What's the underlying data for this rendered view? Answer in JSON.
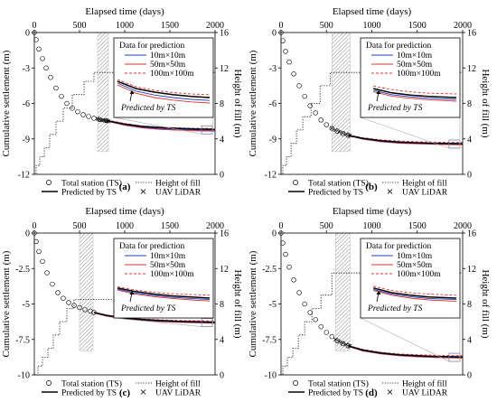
{
  "figure": {
    "top_axis_title": "Elapsed time (days)",
    "left_axis_title": "Cumulative settlement (m)",
    "right_axis_title": "Height of fill (m)",
    "inset_title": "Data for prediction",
    "predicted_annotation": "Predicted by TS",
    "panel_labels": [
      "(a)",
      "(b)",
      "(c)",
      "(d)"
    ],
    "legend": [
      {
        "label": "Total station (TS)",
        "symbol": "circle"
      },
      {
        "label": "Height of fill",
        "symbol": "dotted"
      },
      {
        "label": "Predicted by TS",
        "symbol": "thick-line"
      },
      {
        "label": "UAV LiDAR",
        "symbol": "cross"
      }
    ],
    "inset_legend": [
      {
        "label": "10m×10m",
        "color": "#1f3fbf",
        "dash": "solid"
      },
      {
        "label": "50m×50m",
        "color": "#e03030",
        "dash": "solid"
      },
      {
        "label": "100m×100m",
        "color": "#e03030",
        "dash": "dashed"
      }
    ],
    "colors": {
      "measured": "#000000",
      "blue": "#1f3fbf",
      "red": "#e03030",
      "band": "#bbbbbb",
      "inset_box": "#7f7f9f"
    }
  },
  "chart_data": [
    {
      "type": "line",
      "panel": "(a)",
      "xlim": [
        0,
        2000
      ],
      "xticks": [
        0,
        500,
        1000,
        1500,
        2000
      ],
      "ylim": [
        -12,
        0
      ],
      "yticks": [
        0,
        -3,
        -6,
        -9,
        -12
      ],
      "y2lim": [
        0,
        16
      ],
      "y2ticks": [
        16,
        12,
        8,
        4,
        0
      ],
      "uav_window": [
        700,
        820
      ],
      "settlement_total_station": [
        [
          0,
          0
        ],
        [
          20,
          -0.6
        ],
        [
          50,
          -1.4
        ],
        [
          90,
          -2.2
        ],
        [
          130,
          -3.0
        ],
        [
          180,
          -3.8
        ],
        [
          240,
          -4.7
        ],
        [
          300,
          -5.4
        ],
        [
          360,
          -6.0
        ],
        [
          420,
          -6.4
        ],
        [
          480,
          -6.7
        ],
        [
          540,
          -6.95
        ],
        [
          600,
          -7.1
        ],
        [
          660,
          -7.25
        ],
        [
          720,
          -7.35
        ],
        [
          800,
          -7.45
        ]
      ],
      "settlement_uav_lidar": [
        [
          700,
          -7.3
        ],
        [
          720,
          -7.35
        ],
        [
          740,
          -7.4
        ],
        [
          760,
          -7.42
        ],
        [
          780,
          -7.45
        ],
        [
          800,
          -7.5
        ],
        [
          820,
          -7.52
        ]
      ],
      "predicted_by_ts": [
        [
          800,
          -7.45
        ],
        [
          1000,
          -7.75
        ],
        [
          1200,
          -7.95
        ],
        [
          1400,
          -8.05
        ],
        [
          1600,
          -8.12
        ],
        [
          1800,
          -8.17
        ],
        [
          2000,
          -8.2
        ]
      ],
      "predicted_10x10": [
        [
          800,
          -7.47
        ],
        [
          1000,
          -7.8
        ],
        [
          1200,
          -8.02
        ],
        [
          1400,
          -8.13
        ],
        [
          1600,
          -8.2
        ],
        [
          1800,
          -8.25
        ],
        [
          2000,
          -8.28
        ]
      ],
      "predicted_50x50": [
        [
          800,
          -7.5
        ],
        [
          1000,
          -7.85
        ],
        [
          1200,
          -8.08
        ],
        [
          1400,
          -8.2
        ],
        [
          1600,
          -8.27
        ],
        [
          1800,
          -8.32
        ],
        [
          2000,
          -8.35
        ]
      ],
      "predicted_100x100": [
        [
          800,
          -7.4
        ],
        [
          1000,
          -7.7
        ],
        [
          1200,
          -7.9
        ],
        [
          1400,
          -8.0
        ],
        [
          1600,
          -8.06
        ],
        [
          1800,
          -8.1
        ],
        [
          2000,
          -8.12
        ]
      ],
      "height_of_fill": [
        [
          0,
          0
        ],
        [
          20,
          0
        ],
        [
          20,
          1
        ],
        [
          60,
          1
        ],
        [
          60,
          2
        ],
        [
          110,
          2
        ],
        [
          110,
          3
        ],
        [
          170,
          3
        ],
        [
          170,
          4.5
        ],
        [
          240,
          4.5
        ],
        [
          240,
          6
        ],
        [
          320,
          6
        ],
        [
          320,
          7.5
        ],
        [
          420,
          7.5
        ],
        [
          420,
          9
        ],
        [
          550,
          9
        ],
        [
          550,
          10.5
        ],
        [
          660,
          10.5
        ],
        [
          660,
          11.5
        ],
        [
          2000,
          11.5
        ]
      ]
    },
    {
      "type": "line",
      "panel": "(b)",
      "xlim": [
        0,
        2000
      ],
      "xticks": [
        0,
        500,
        1000,
        1500,
        2000
      ],
      "ylim": [
        -12,
        0
      ],
      "yticks": [
        0,
        -3,
        -6,
        -9,
        -12
      ],
      "y2lim": [
        0,
        16
      ],
      "y2ticks": [
        16,
        12,
        8,
        4,
        0
      ],
      "uav_window": [
        560,
        760
      ],
      "settlement_total_station": [
        [
          0,
          0
        ],
        [
          20,
          -0.7
        ],
        [
          50,
          -1.6
        ],
        [
          90,
          -2.5
        ],
        [
          140,
          -3.5
        ],
        [
          200,
          -4.5
        ],
        [
          260,
          -5.4
        ],
        [
          320,
          -6.2
        ],
        [
          380,
          -6.8
        ],
        [
          440,
          -7.4
        ],
        [
          500,
          -7.8
        ],
        [
          560,
          -8.1
        ],
        [
          620,
          -8.35
        ],
        [
          680,
          -8.55
        ],
        [
          740,
          -8.7
        ]
      ],
      "settlement_uav_lidar": [
        [
          560,
          -8.1
        ],
        [
          600,
          -8.25
        ],
        [
          640,
          -8.4
        ],
        [
          680,
          -8.5
        ],
        [
          720,
          -8.6
        ],
        [
          760,
          -8.7
        ]
      ],
      "predicted_by_ts": [
        [
          740,
          -8.7
        ],
        [
          900,
          -8.95
        ],
        [
          1100,
          -9.15
        ],
        [
          1300,
          -9.27
        ],
        [
          1500,
          -9.33
        ],
        [
          1700,
          -9.37
        ],
        [
          2000,
          -9.4
        ]
      ],
      "predicted_10x10": [
        [
          740,
          -8.72
        ],
        [
          900,
          -9.0
        ],
        [
          1100,
          -9.2
        ],
        [
          1300,
          -9.32
        ],
        [
          1500,
          -9.38
        ],
        [
          1700,
          -9.42
        ],
        [
          2000,
          -9.45
        ]
      ],
      "predicted_50x50": [
        [
          740,
          -8.74
        ],
        [
          900,
          -9.03
        ],
        [
          1100,
          -9.24
        ],
        [
          1300,
          -9.36
        ],
        [
          1500,
          -9.42
        ],
        [
          1700,
          -9.46
        ],
        [
          2000,
          -9.5
        ]
      ],
      "predicted_100x100": [
        [
          740,
          -8.66
        ],
        [
          900,
          -8.9
        ],
        [
          1100,
          -9.08
        ],
        [
          1300,
          -9.18
        ],
        [
          1500,
          -9.24
        ],
        [
          1700,
          -9.28
        ],
        [
          2000,
          -9.3
        ]
      ],
      "height_of_fill": [
        [
          0,
          0
        ],
        [
          20,
          0
        ],
        [
          20,
          1
        ],
        [
          60,
          1
        ],
        [
          60,
          2
        ],
        [
          110,
          2
        ],
        [
          110,
          3.5
        ],
        [
          170,
          3.5
        ],
        [
          170,
          5
        ],
        [
          240,
          5
        ],
        [
          240,
          6.5
        ],
        [
          330,
          6.5
        ],
        [
          330,
          8
        ],
        [
          430,
          8
        ],
        [
          430,
          10
        ],
        [
          540,
          10
        ],
        [
          540,
          11.5
        ],
        [
          2000,
          11.5
        ]
      ]
    },
    {
      "type": "line",
      "panel": "(c)",
      "xlim": [
        0,
        2000
      ],
      "xticks": [
        0,
        500,
        1000,
        1500,
        2000
      ],
      "ylim": [
        -10,
        0
      ],
      "yticks": [
        0,
        -2.5,
        -5,
        -7.5,
        -10
      ],
      "y2lim": [
        0,
        16
      ],
      "y2ticks": [
        16,
        12,
        8,
        4,
        0
      ],
      "uav_window": [
        500,
        650
      ],
      "settlement_total_station": [
        [
          0,
          0
        ],
        [
          20,
          -0.6
        ],
        [
          50,
          -1.3
        ],
        [
          90,
          -2.0
        ],
        [
          140,
          -2.8
        ],
        [
          200,
          -3.6
        ],
        [
          260,
          -4.2
        ],
        [
          320,
          -4.6
        ],
        [
          380,
          -4.9
        ],
        [
          440,
          -5.1
        ],
        [
          500,
          -5.25
        ],
        [
          560,
          -5.4
        ],
        [
          620,
          -5.5
        ],
        [
          660,
          -5.6
        ]
      ],
      "settlement_uav_lidar": [],
      "predicted_by_ts": [
        [
          660,
          -5.6
        ],
        [
          800,
          -5.8
        ],
        [
          1000,
          -6.0
        ],
        [
          1200,
          -6.1
        ],
        [
          1400,
          -6.17
        ],
        [
          1600,
          -6.22
        ],
        [
          1800,
          -6.25
        ],
        [
          2000,
          -6.28
        ]
      ],
      "predicted_10x10": [
        [
          660,
          -5.62
        ],
        [
          800,
          -5.83
        ],
        [
          1000,
          -6.03
        ],
        [
          1200,
          -6.14
        ],
        [
          1400,
          -6.21
        ],
        [
          1600,
          -6.26
        ],
        [
          1800,
          -6.29
        ],
        [
          2000,
          -6.32
        ]
      ],
      "predicted_50x50": [
        [
          660,
          -5.64
        ],
        [
          800,
          -5.86
        ],
        [
          1000,
          -6.06
        ],
        [
          1200,
          -6.17
        ],
        [
          1400,
          -6.24
        ],
        [
          1600,
          -6.29
        ],
        [
          1800,
          -6.33
        ],
        [
          2000,
          -6.36
        ]
      ],
      "predicted_100x100": [
        [
          660,
          -5.58
        ],
        [
          800,
          -5.78
        ],
        [
          1000,
          -5.97
        ],
        [
          1200,
          -6.06
        ],
        [
          1400,
          -6.12
        ],
        [
          1600,
          -6.16
        ],
        [
          1800,
          -6.18
        ],
        [
          2000,
          -6.2
        ]
      ],
      "height_of_fill": [
        [
          0,
          0
        ],
        [
          40,
          0
        ],
        [
          40,
          1
        ],
        [
          90,
          1
        ],
        [
          90,
          2
        ],
        [
          150,
          2
        ],
        [
          150,
          3
        ],
        [
          210,
          3
        ],
        [
          210,
          4.5
        ],
        [
          280,
          4.5
        ],
        [
          280,
          6
        ],
        [
          360,
          6
        ],
        [
          360,
          7.5
        ],
        [
          440,
          7.5
        ],
        [
          440,
          8.5
        ],
        [
          2000,
          8.5
        ]
      ]
    },
    {
      "type": "line",
      "panel": "(d)",
      "xlim": [
        0,
        2000
      ],
      "xticks": [
        0,
        500,
        1000,
        1500,
        2000
      ],
      "ylim": [
        -10,
        0
      ],
      "yticks": [
        0,
        -2.5,
        -5,
        -7.5,
        -10
      ],
      "y2lim": [
        0,
        16
      ],
      "y2ticks": [
        16,
        12,
        8,
        4,
        0
      ],
      "uav_window": [
        600,
        760
      ],
      "settlement_total_station": [
        [
          0,
          0
        ],
        [
          20,
          -0.7
        ],
        [
          50,
          -1.5
        ],
        [
          90,
          -2.4
        ],
        [
          140,
          -3.3
        ],
        [
          200,
          -4.2
        ],
        [
          260,
          -5.0
        ],
        [
          320,
          -5.6
        ],
        [
          380,
          -6.1
        ],
        [
          440,
          -6.6
        ],
        [
          500,
          -7.0
        ],
        [
          560,
          -7.3
        ],
        [
          620,
          -7.6
        ],
        [
          680,
          -7.8
        ],
        [
          740,
          -7.95
        ]
      ],
      "settlement_uav_lidar": [
        [
          600,
          -7.5
        ],
        [
          640,
          -7.65
        ],
        [
          680,
          -7.75
        ],
        [
          720,
          -7.85
        ],
        [
          760,
          -7.95
        ]
      ],
      "predicted_by_ts": [
        [
          740,
          -7.95
        ],
        [
          900,
          -8.25
        ],
        [
          1100,
          -8.45
        ],
        [
          1300,
          -8.58
        ],
        [
          1500,
          -8.65
        ],
        [
          1700,
          -8.7
        ],
        [
          2000,
          -8.73
        ]
      ],
      "predicted_10x10": [
        [
          740,
          -7.97
        ],
        [
          900,
          -8.28
        ],
        [
          1100,
          -8.49
        ],
        [
          1300,
          -8.62
        ],
        [
          1500,
          -8.69
        ],
        [
          1700,
          -8.74
        ],
        [
          2000,
          -8.77
        ]
      ],
      "predicted_50x50": [
        [
          740,
          -7.99
        ],
        [
          900,
          -8.31
        ],
        [
          1100,
          -8.52
        ],
        [
          1300,
          -8.65
        ],
        [
          1500,
          -8.73
        ],
        [
          1700,
          -8.78
        ],
        [
          2000,
          -8.82
        ]
      ],
      "predicted_100x100": [
        [
          740,
          -7.92
        ],
        [
          900,
          -8.2
        ],
        [
          1100,
          -8.4
        ],
        [
          1300,
          -8.52
        ],
        [
          1500,
          -8.58
        ],
        [
          1700,
          -8.62
        ],
        [
          2000,
          -8.65
        ]
      ],
      "height_of_fill": [
        [
          0,
          0
        ],
        [
          20,
          0
        ],
        [
          20,
          1
        ],
        [
          70,
          1
        ],
        [
          70,
          2
        ],
        [
          130,
          2
        ],
        [
          130,
          3
        ],
        [
          190,
          3
        ],
        [
          190,
          4.5
        ],
        [
          260,
          4.5
        ],
        [
          260,
          6
        ],
        [
          340,
          6
        ],
        [
          340,
          7.5
        ],
        [
          440,
          7.5
        ],
        [
          440,
          9
        ],
        [
          560,
          9
        ],
        [
          560,
          11.5
        ],
        [
          2000,
          11.5
        ]
      ]
    }
  ]
}
